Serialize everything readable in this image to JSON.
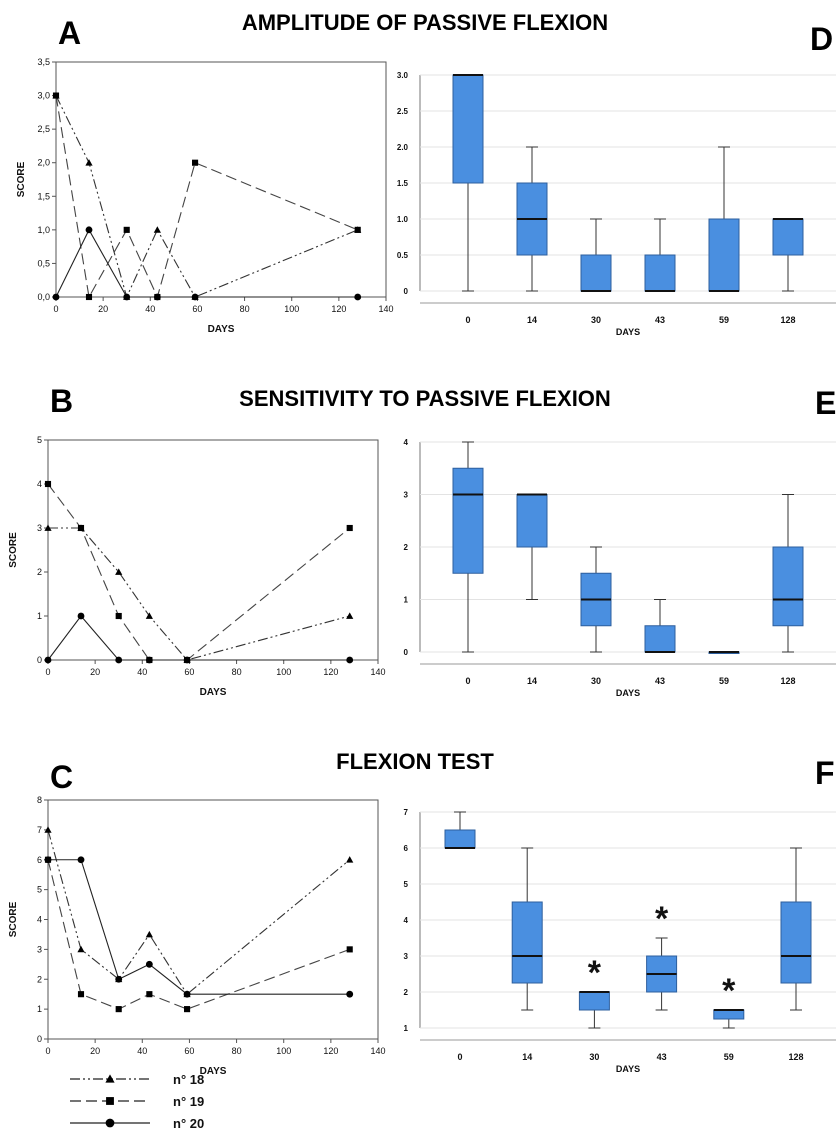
{
  "figure": {
    "titles": [
      "AMPLITUDE OF PASSIVE FLEXION",
      "SENSITIVITY TO PASSIVE FLEXION",
      "FLEXION TEST"
    ],
    "panel_letters": [
      "A",
      "B",
      "C",
      "D",
      "E",
      "F"
    ],
    "legend": [
      {
        "label": "n° 18",
        "marker": "triangle",
        "dash": "dash-dot-dot"
      },
      {
        "label": "n° 19",
        "marker": "square",
        "dash": "long-dash"
      },
      {
        "label": "n° 20",
        "marker": "circle",
        "dash": "solid"
      }
    ]
  },
  "chart_data": [
    {
      "panel": "A",
      "type": "line",
      "xlabel": "DAYS",
      "ylabel": "SCORE",
      "xlim": [
        0,
        140
      ],
      "xticks": [
        "0",
        "20",
        "40",
        "60",
        "80",
        "100",
        "120",
        "140"
      ],
      "ylim": [
        0,
        3.5
      ],
      "yticks": [
        "0,0",
        "0,5",
        "1,0",
        "1,5",
        "2,0",
        "2,5",
        "3,0",
        "3,5"
      ],
      "series": [
        {
          "name": "n° 18",
          "x": [
            0,
            14,
            30,
            43,
            59,
            128
          ],
          "y": [
            3,
            2,
            0,
            1,
            0,
            1
          ]
        },
        {
          "name": "n° 19",
          "x": [
            0,
            14,
            30,
            43,
            59,
            128
          ],
          "y": [
            3,
            0,
            1,
            0,
            2,
            1
          ]
        },
        {
          "name": "n° 20",
          "x": [
            0,
            14,
            30,
            43,
            59,
            128
          ],
          "y": [
            0,
            1,
            0,
            0,
            0,
            0
          ]
        }
      ]
    },
    {
      "panel": "D",
      "type": "box",
      "xlabel": "DAYS",
      "categories": [
        "0",
        "14",
        "30",
        "43",
        "59",
        "128"
      ],
      "ylim": [
        0,
        3.0
      ],
      "yticks": [
        "0",
        "0.5",
        "1.0",
        "1.5",
        "2.0",
        "2.5",
        "3.0"
      ],
      "boxes": [
        {
          "min": 0,
          "q1": 1.5,
          "median": 3,
          "q3": 3,
          "max": 3
        },
        {
          "min": 0,
          "q1": 0.5,
          "median": 1,
          "q3": 1.5,
          "max": 2
        },
        {
          "min": 0,
          "q1": 0,
          "median": 0,
          "q3": 0.5,
          "max": 1
        },
        {
          "min": 0,
          "q1": 0,
          "median": 0,
          "q3": 0.5,
          "max": 1
        },
        {
          "min": 0,
          "q1": 0,
          "median": 0,
          "q3": 1,
          "max": 2
        },
        {
          "min": 0,
          "q1": 0.5,
          "median": 1,
          "q3": 1,
          "max": 1
        }
      ]
    },
    {
      "panel": "B",
      "type": "line",
      "xlabel": "DAYS",
      "ylabel": "SCORE",
      "xlim": [
        0,
        140
      ],
      "xticks": [
        "0",
        "20",
        "40",
        "60",
        "80",
        "100",
        "120",
        "140"
      ],
      "ylim": [
        0,
        5
      ],
      "yticks": [
        "0",
        "1",
        "2",
        "3",
        "4",
        "5"
      ],
      "series": [
        {
          "name": "n° 18",
          "x": [
            0,
            14,
            30,
            43,
            59,
            128
          ],
          "y": [
            3,
            3,
            2,
            1,
            0,
            1
          ]
        },
        {
          "name": "n° 19",
          "x": [
            0,
            14,
            30,
            43,
            59,
            128
          ],
          "y": [
            4,
            3,
            1,
            0,
            0,
            3
          ]
        },
        {
          "name": "n° 20",
          "x": [
            0,
            14,
            30,
            43,
            59,
            128
          ],
          "y": [
            0,
            1,
            0,
            0,
            0,
            0
          ]
        }
      ]
    },
    {
      "panel": "E",
      "type": "box",
      "xlabel": "DAYS",
      "categories": [
        "0",
        "14",
        "30",
        "43",
        "59",
        "128"
      ],
      "ylim": [
        0,
        4
      ],
      "yticks": [
        "0",
        "1",
        "2",
        "3",
        "4"
      ],
      "boxes": [
        {
          "min": 0,
          "q1": 1.5,
          "median": 3,
          "q3": 3.5,
          "max": 4
        },
        {
          "min": 1,
          "q1": 2,
          "median": 3,
          "q3": 3,
          "max": 3
        },
        {
          "min": 0,
          "q1": 0.5,
          "median": 1,
          "q3": 1.5,
          "max": 2
        },
        {
          "min": 0,
          "q1": 0,
          "median": 0,
          "q3": 0.5,
          "max": 1
        },
        {
          "min": 0,
          "q1": 0,
          "median": 0,
          "q3": 0,
          "max": 0
        },
        {
          "min": 0,
          "q1": 0.5,
          "median": 1,
          "q3": 2,
          "max": 3
        }
      ]
    },
    {
      "panel": "C",
      "type": "line",
      "xlabel": "DAYS",
      "ylabel": "SCORE",
      "xlim": [
        0,
        140
      ],
      "xticks": [
        "0",
        "20",
        "40",
        "60",
        "80",
        "100",
        "120",
        "140"
      ],
      "ylim": [
        0,
        8
      ],
      "yticks": [
        "0",
        "1",
        "2",
        "3",
        "4",
        "5",
        "6",
        "7",
        "8"
      ],
      "series": [
        {
          "name": "n° 18",
          "x": [
            0,
            14,
            30,
            43,
            59,
            128
          ],
          "y": [
            7,
            3,
            2,
            3.5,
            1.5,
            6
          ]
        },
        {
          "name": "n° 19",
          "x": [
            0,
            14,
            30,
            43,
            59,
            128
          ],
          "y": [
            6,
            1.5,
            1,
            1.5,
            1,
            3
          ]
        },
        {
          "name": "n° 20",
          "x": [
            0,
            14,
            30,
            43,
            59,
            128
          ],
          "y": [
            6,
            6,
            2,
            2.5,
            1.5,
            1.5
          ]
        }
      ]
    },
    {
      "panel": "F",
      "type": "box",
      "xlabel": "DAYS",
      "categories": [
        "0",
        "14",
        "30",
        "43",
        "59",
        "128"
      ],
      "ylim": [
        1,
        7
      ],
      "yticks": [
        "1",
        "2",
        "3",
        "4",
        "5",
        "6",
        "7"
      ],
      "significance_marker": "*",
      "significant": [
        "30",
        "43",
        "59"
      ],
      "boxes": [
        {
          "min": 6,
          "q1": 6,
          "median": 6,
          "q3": 6.5,
          "max": 7
        },
        {
          "min": 1.5,
          "q1": 2.25,
          "median": 3,
          "q3": 4.5,
          "max": 6
        },
        {
          "min": 1,
          "q1": 1.5,
          "median": 2,
          "q3": 2,
          "max": 2
        },
        {
          "min": 1.5,
          "q1": 2,
          "median": 2.5,
          "q3": 3,
          "max": 3.5
        },
        {
          "min": 1,
          "q1": 1.25,
          "median": 1.5,
          "q3": 1.5,
          "max": 1.5
        },
        {
          "min": 1.5,
          "q1": 2.25,
          "median": 3,
          "q3": 4.5,
          "max": 6
        }
      ]
    }
  ]
}
